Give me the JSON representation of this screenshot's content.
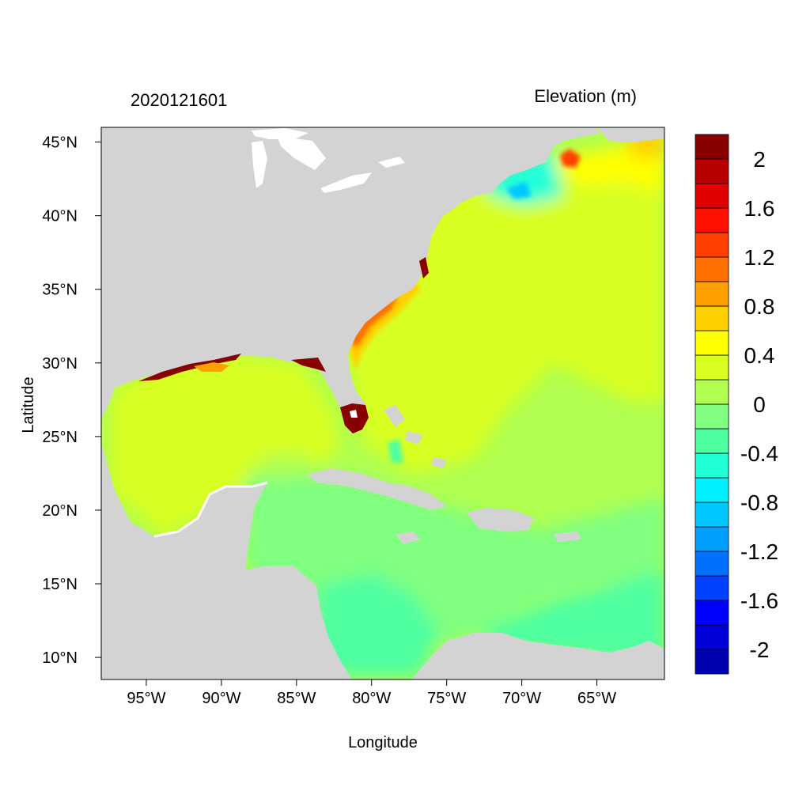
{
  "figure": {
    "left_title": "2020121601",
    "right_title": "Elevation (m)",
    "xlabel": "Longitude",
    "ylabel": "Latitude"
  },
  "map": {
    "lon_range": [
      -98,
      -60.5
    ],
    "lat_range": [
      8.5,
      46
    ],
    "x_ticks": [
      {
        "value": -95,
        "label": "95°W"
      },
      {
        "value": -90,
        "label": "90°W"
      },
      {
        "value": -85,
        "label": "85°W"
      },
      {
        "value": -80,
        "label": "80°W"
      },
      {
        "value": -75,
        "label": "75°W"
      },
      {
        "value": -70,
        "label": "70°W"
      },
      {
        "value": -65,
        "label": "65°W"
      }
    ],
    "y_ticks": [
      {
        "value": 45,
        "label": "45°N"
      },
      {
        "value": 40,
        "label": "40°N"
      },
      {
        "value": 35,
        "label": "35°N"
      },
      {
        "value": 30,
        "label": "30°N"
      },
      {
        "value": 25,
        "label": "25°N"
      },
      {
        "value": 20,
        "label": "20°N"
      },
      {
        "value": 15,
        "label": "15°N"
      },
      {
        "value": 10,
        "label": "10°N"
      }
    ],
    "land_color": "#d3d3d3",
    "lake_color": "#ffffff"
  },
  "colorbar": {
    "colors": [
      "#0000b0",
      "#0000d8",
      "#0000ff",
      "#0040ff",
      "#0070ff",
      "#00a0ff",
      "#00c8ff",
      "#00f0ff",
      "#20ffd8",
      "#50ffa0",
      "#80ff80",
      "#b0ff50",
      "#d8ff20",
      "#ffff00",
      "#ffd000",
      "#ffa000",
      "#ff7000",
      "#ff4000",
      "#ff1000",
      "#e00000",
      "#b80000",
      "#880000"
    ],
    "labels": [
      {
        "text": "2",
        "boundary": 20
      },
      {
        "text": "1.6",
        "boundary": 18
      },
      {
        "text": "1.2",
        "boundary": 16
      },
      {
        "text": "0.8",
        "boundary": 14
      },
      {
        "text": "0.4",
        "boundary": 12
      },
      {
        "text": "0",
        "boundary": 10
      },
      {
        "text": "-0.4",
        "boundary": 8
      },
      {
        "text": "-0.8",
        "boundary": 6
      },
      {
        "text": "-1.2",
        "boundary": 4
      },
      {
        "text": "-1.6",
        "boundary": 2
      },
      {
        "text": "-2",
        "boundary": 0
      }
    ]
  }
}
